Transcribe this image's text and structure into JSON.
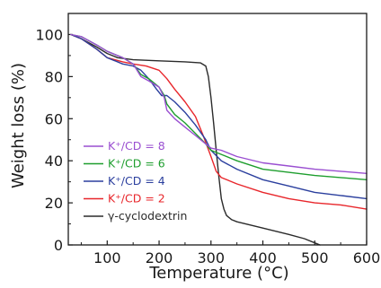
{
  "chart_data": {
    "type": "line",
    "xlabel": "Temperature (°C)",
    "ylabel": "Weight loss (%)",
    "xlim": [
      25,
      600
    ],
    "ylim": [
      0,
      110
    ],
    "xticks": [
      100,
      200,
      300,
      400,
      500,
      600
    ],
    "yticks": [
      0,
      20,
      40,
      60,
      80,
      100
    ],
    "legend_position": "left-middle",
    "series": [
      {
        "name": "K⁺/CD = 8",
        "color": "#9a4fd1",
        "x": [
          30,
          50,
          80,
          100,
          130,
          150,
          165,
          180,
          200,
          210,
          215,
          230,
          250,
          270,
          290,
          300,
          320,
          350,
          400,
          450,
          500,
          550,
          600
        ],
        "y": [
          100,
          99,
          95,
          92,
          89,
          86,
          80,
          78,
          75,
          70,
          64,
          60,
          56,
          52,
          48,
          46,
          45,
          42,
          39,
          37.5,
          36,
          35,
          34
        ]
      },
      {
        "name": "K⁺/CD = 6",
        "color": "#1e9e2e",
        "x": [
          30,
          50,
          80,
          100,
          130,
          150,
          165,
          180,
          200,
          210,
          215,
          230,
          250,
          270,
          290,
          300,
          320,
          350,
          400,
          450,
          500,
          550,
          600
        ],
        "y": [
          100,
          99,
          95,
          92,
          89,
          86,
          81,
          79,
          75,
          71,
          67,
          62,
          58,
          53,
          48,
          45,
          43,
          40,
          36,
          34.5,
          33,
          32,
          31
        ]
      },
      {
        "name": "K⁺/CD = 4",
        "color": "#2b3f9e",
        "x": [
          30,
          50,
          80,
          100,
          130,
          150,
          165,
          180,
          195,
          205,
          215,
          230,
          250,
          270,
          290,
          300,
          320,
          350,
          400,
          450,
          500,
          550,
          600
        ],
        "y": [
          100,
          98,
          93,
          89,
          86,
          85,
          83,
          79,
          74,
          71,
          71,
          68,
          63,
          57,
          50,
          45,
          40,
          36,
          31,
          28,
          25,
          23.5,
          22
        ]
      },
      {
        "name": "K⁺/CD = 2",
        "color": "#e8262b",
        "x": [
          30,
          50,
          80,
          100,
          130,
          150,
          175,
          200,
          215,
          230,
          250,
          270,
          285,
          300,
          310,
          320,
          340,
          350,
          400,
          450,
          500,
          550,
          600
        ],
        "y": [
          100,
          98,
          93,
          89,
          87,
          86,
          85,
          83,
          79,
          74,
          68,
          61,
          52,
          42,
          35,
          32,
          30,
          29,
          25,
          22,
          20,
          19,
          17
        ]
      },
      {
        "name": "γ-cyclodextrin",
        "color": "#2b2b2b",
        "x": [
          30,
          50,
          80,
          100,
          120,
          150,
          200,
          250,
          280,
          290,
          295,
          300,
          305,
          310,
          315,
          320,
          325,
          330,
          340,
          350,
          400,
          450,
          480,
          500,
          510
        ],
        "y": [
          100,
          98,
          94,
          91,
          89,
          88,
          87.5,
          87,
          86.5,
          85,
          80,
          70,
          58,
          45,
          33,
          22,
          17,
          14,
          12,
          11,
          8,
          5,
          3,
          1,
          0
        ]
      }
    ]
  }
}
